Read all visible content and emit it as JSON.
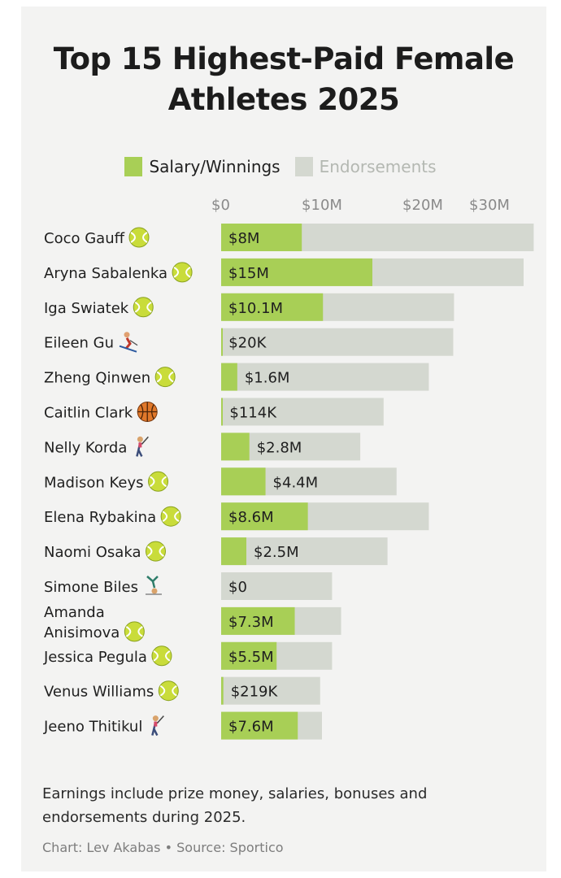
{
  "title_line1": "Top 15 Highest-Paid Female",
  "title_line2": "Athletes 2025",
  "legend": {
    "salary_label": "Salary/Winnings",
    "endorse_label": "Endorsements"
  },
  "colors": {
    "salary": "#a8cf56",
    "endorsements": "#d4d8d0",
    "background": "#f3f3f2"
  },
  "footnote": "Earnings include prize money, salaries, bonuses and endorsements during 2025.",
  "credit": "Chart: Lev Akabas • Source: Sportico",
  "chart_data": {
    "type": "bar",
    "orientation": "horizontal",
    "stacked": true,
    "title": "Top 15 Highest-Paid Female Athletes 2025",
    "xlabel": "",
    "ylabel": "",
    "xlim": [
      0,
      30
    ],
    "unit": "$M",
    "ticks": [
      {
        "value": 0,
        "label": "$0"
      },
      {
        "value": 10,
        "label": "$10M"
      },
      {
        "value": 20,
        "label": "$20M"
      },
      {
        "value": 30,
        "label": "$30M"
      }
    ],
    "categories": [
      {
        "name": "Coco Gauff",
        "sport": "tennis",
        "icon": "tennis-ball-icon"
      },
      {
        "name": "Aryna Sabalenka",
        "sport": "tennis",
        "icon": "tennis-ball-icon"
      },
      {
        "name": "Iga Swiatek",
        "sport": "tennis",
        "icon": "tennis-ball-icon"
      },
      {
        "name": "Eileen Gu",
        "sport": "skiing",
        "icon": "skier-icon"
      },
      {
        "name": "Zheng Qinwen",
        "sport": "tennis",
        "icon": "tennis-ball-icon"
      },
      {
        "name": "Caitlin Clark",
        "sport": "basketball",
        "icon": "basketball-icon"
      },
      {
        "name": "Nelly Korda",
        "sport": "golf",
        "icon": "golfer-icon"
      },
      {
        "name": "Madison Keys",
        "sport": "tennis",
        "icon": "tennis-ball-icon"
      },
      {
        "name": "Elena Rybakina",
        "sport": "tennis",
        "icon": "tennis-ball-icon"
      },
      {
        "name": "Naomi Osaka",
        "sport": "tennis",
        "icon": "tennis-ball-icon"
      },
      {
        "name": "Simone Biles",
        "sport": "gymnastics",
        "icon": "gymnast-icon"
      },
      {
        "name": "Amanda Anisimova",
        "name_lines": [
          "Amanda",
          "Anisimova"
        ],
        "sport": "tennis",
        "icon": "tennis-ball-icon"
      },
      {
        "name": "Jessica Pegula",
        "sport": "tennis",
        "icon": "tennis-ball-icon"
      },
      {
        "name": "Venus Williams",
        "sport": "tennis",
        "icon": "tennis-ball-icon"
      },
      {
        "name": "Jeeno Thitikul",
        "sport": "golf",
        "icon": "golfer-icon"
      }
    ],
    "series": [
      {
        "name": "Salary/Winnings",
        "values": [
          8,
          15,
          10.1,
          0.02,
          1.6,
          0.114,
          2.8,
          4.4,
          8.6,
          2.5,
          0,
          7.3,
          5.5,
          0.219,
          7.6
        ],
        "labels": [
          "$8M",
          "$15M",
          "$10.1M",
          "$20K",
          "$1.6M",
          "$114K",
          "$2.8M",
          "$4.4M",
          "$8.6M",
          "$2.5M",
          "$0",
          "$7.3M",
          "$5.5M",
          "$219K",
          "$7.6M"
        ]
      },
      {
        "name": "Endorsements",
        "values": [
          23,
          15,
          13,
          23,
          19,
          16,
          11,
          13,
          12,
          14,
          11,
          4.6,
          5.5,
          9.6,
          2.4
        ]
      }
    ]
  }
}
